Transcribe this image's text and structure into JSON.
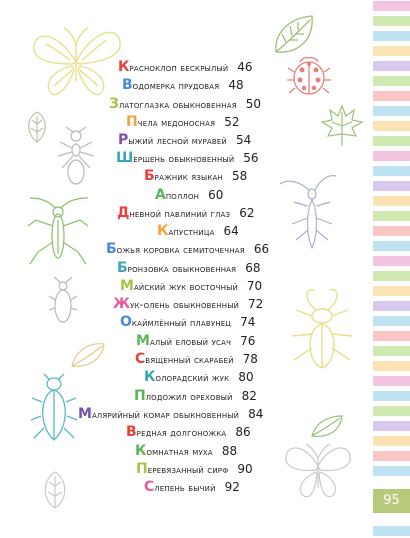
{
  "entries": [
    {
      "first": "К",
      "rest": "расноклоп бескрылый",
      "page": "46",
      "color": "#e8403a"
    },
    {
      "first": "В",
      "rest": "одомерка прудовая",
      "page": "48",
      "color": "#4a8ad6"
    },
    {
      "first": "З",
      "rest": "латоглазка обыкновенная",
      "page": "50",
      "color": "#a7c44a"
    },
    {
      "first": "П",
      "rest": "чела медоносная",
      "page": "52",
      "color": "#f2a43a"
    },
    {
      "first": "Р",
      "rest": "ыжий лесной муравей",
      "page": "54",
      "color": "#7a4fb0"
    },
    {
      "first": "Ш",
      "rest": "ершень обыкновенный",
      "page": "56",
      "color": "#3aa6b9"
    },
    {
      "first": "Б",
      "rest": "ражник языкан",
      "page": "58",
      "color": "#e8403a"
    },
    {
      "first": "А",
      "rest": "поллон",
      "page": "60",
      "color": "#5bb55a"
    },
    {
      "first": "Д",
      "rest": "невной павлиний глаз",
      "page": "62",
      "color": "#e8403a"
    },
    {
      "first": "К",
      "rest": "апустница",
      "page": "64",
      "color": "#f2a43a"
    },
    {
      "first": "Б",
      "rest": "ожья коровка семиточечная",
      "page": "66",
      "color": "#4a8ad6"
    },
    {
      "first": "Б",
      "rest": "ронзовка обыкновенная",
      "page": "68",
      "color": "#3aa6b9"
    },
    {
      "first": "М",
      "rest": "айский жук восточный",
      "page": "70",
      "color": "#a7c44a"
    },
    {
      "first": "Ж",
      "rest": "ук-олень обыкновенный",
      "page": "72",
      "color": "#e85aa0"
    },
    {
      "first": "О",
      "rest": "каймлённый плавунец",
      "page": "74",
      "color": "#4a8ad6"
    },
    {
      "first": "М",
      "rest": "алый еловый усач",
      "page": "76",
      "color": "#5bb55a"
    },
    {
      "first": "С",
      "rest": "вященный скарабей",
      "page": "78",
      "color": "#e8403a"
    },
    {
      "first": "К",
      "rest": "олорадский жук",
      "page": "80",
      "color": "#3aa6b9"
    },
    {
      "first": "П",
      "rest": "лодожил ореховый",
      "page": "82",
      "color": "#5bb55a"
    },
    {
      "first": "М",
      "rest": "алярийный комар обыкновенный",
      "page": "84",
      "color": "#7a4fb0"
    },
    {
      "first": "В",
      "rest": "редная долгоножка",
      "page": "86",
      "color": "#e8403a"
    },
    {
      "first": "К",
      "rest": "омнатная муха",
      "page": "88",
      "color": "#5bb55a"
    },
    {
      "first": "П",
      "rest": "еревязанный сирф",
      "page": "90",
      "color": "#a7c44a"
    },
    {
      "first": "С",
      "rest": "лепень бычий",
      "page": "92",
      "color": "#e85aa0"
    }
  ],
  "page_number": "95",
  "stripe_colors": [
    "#f3c5e0",
    "#cfe9b0",
    "#bfe3f0",
    "#fbe3b3",
    "#d9c9ef",
    "#cfe9b0",
    "#fbc6c6",
    "#bfe3f0",
    "#fbe3b3",
    "#cfe9b0",
    "#f3c5e0",
    "#bfe3f0",
    "#d9c9ef",
    "#fbe3b3",
    "#cfe9b0",
    "#fbc6c6",
    "#bfe3f0",
    "#f3c5e0",
    "#cfe9b0",
    "#fbe3b3",
    "#d9c9ef",
    "#bfe3f0",
    "#fbc6c6",
    "#cfe9b0",
    "#fbe3b3",
    "#f3c5e0",
    "#bfe3f0",
    "#cfe9b0",
    "#d9c9ef",
    "#fbe3b3",
    "#fbc6c6",
    "#bfe3f0",
    "#cfe9b0",
    "#f3c5e0",
    "#fbe3b3",
    "#bfe3f0"
  ],
  "page_number_color": "#b7c97a"
}
